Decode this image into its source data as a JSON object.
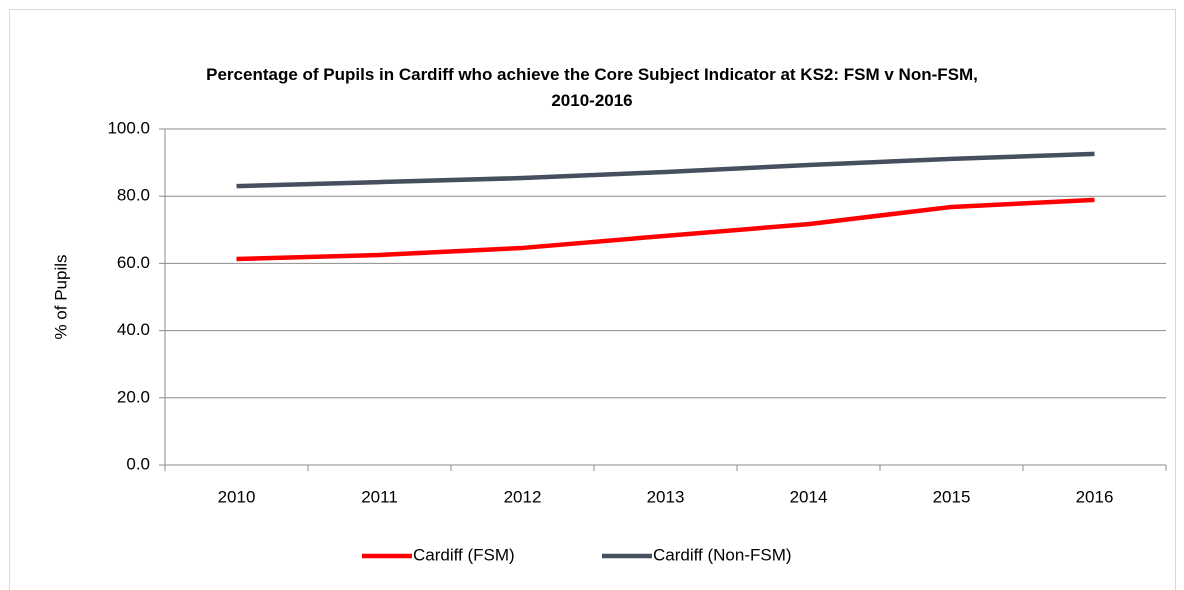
{
  "chart_data": {
    "type": "line",
    "title": "Percentage of Pupils in Cardiff who achieve the Core Subject Indicator at KS2: FSM v Non-FSM, 2010-2016",
    "y_label": "% of Pupils",
    "categories": [
      "2010",
      "2011",
      "2012",
      "2013",
      "2014",
      "2015",
      "2016"
    ],
    "series": [
      {
        "name": "Cardiff (FSM)",
        "color": "#ff0000",
        "values": [
          61.3,
          62.5,
          64.6,
          68.2,
          71.7,
          76.8,
          78.9
        ]
      },
      {
        "name": "Cardiff (Non-FSM)",
        "color": "#454f5e",
        "values": [
          83.0,
          84.2,
          85.4,
          87.2,
          89.3,
          91.1,
          92.6
        ]
      }
    ],
    "ylim": [
      0,
      100
    ],
    "yticks": [
      {
        "value": 0,
        "label": "0.0"
      },
      {
        "value": 20,
        "label": "20.0"
      },
      {
        "value": 40,
        "label": "40.0"
      },
      {
        "value": 60,
        "label": "60.0"
      },
      {
        "value": 80,
        "label": "80.0"
      },
      {
        "value": 100,
        "label": "100.0"
      }
    ],
    "grid": true,
    "legend": "bottom"
  }
}
